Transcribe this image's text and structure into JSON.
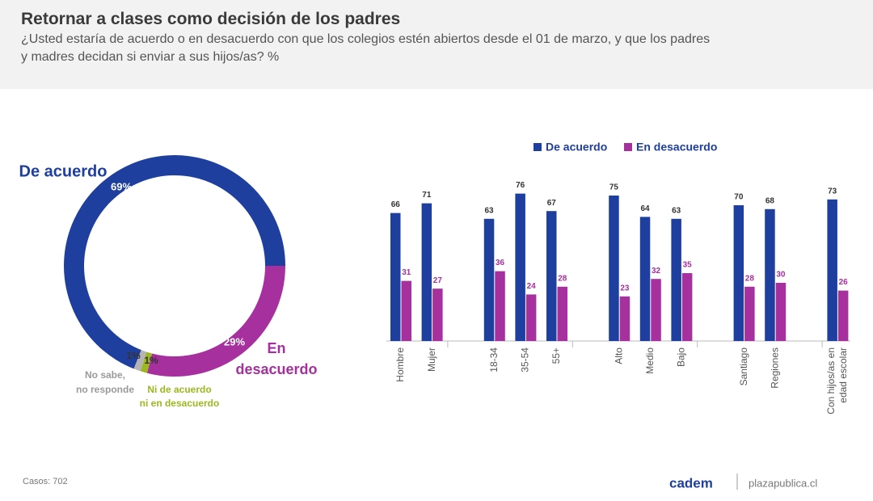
{
  "title": "Retornar a clases como decisión de los padres",
  "subtitle": [
    "¿Usted estaría de acuerdo o en desacuerdo con que los colegios estén abiertos desde el 01 de marzo, y que los padres",
    "y madres decidan si enviar a sus hijos/as? %"
  ],
  "chart_data": [
    {
      "type": "donut",
      "categories": [
        [
          "De acuerdo"
        ],
        [
          "En",
          "desacuerdo"
        ],
        [
          "Ni de acuerdo",
          "ni en desacuerdo"
        ],
        [
          "No sabe,",
          "no responde"
        ]
      ],
      "values": [
        69,
        29,
        1,
        1
      ],
      "value_labels": [
        "69%",
        "29%",
        "1%",
        "1%"
      ],
      "colors": [
        "#1f3f9e",
        "#a5309e",
        "#9bb81e",
        "#b4b4b4"
      ]
    },
    {
      "type": "bar",
      "categories": [
        [
          "Hombre"
        ],
        [
          "Mujer"
        ],
        [
          "18-34"
        ],
        [
          "35-54"
        ],
        [
          "55+"
        ],
        [
          "Alto"
        ],
        [
          "Medio"
        ],
        [
          "Bajo"
        ],
        [
          "Santiago"
        ],
        [
          "Regiones"
        ],
        [
          "Con hijos/as en",
          "edad escolar"
        ]
      ],
      "series": [
        {
          "name": "De acuerdo",
          "color": "#1f3f9e",
          "values": [
            66,
            71,
            63,
            76,
            67,
            75,
            64,
            63,
            70,
            68,
            73
          ]
        },
        {
          "name": "En desacuerdo",
          "color": "#a5309e",
          "values": [
            31,
            27,
            36,
            24,
            28,
            23,
            32,
            35,
            28,
            30,
            26
          ]
        }
      ],
      "legend": "top"
    }
  ],
  "footer": {
    "note": "Casos: 702",
    "brand": "cadem",
    "site": "plazapublica.cl"
  }
}
